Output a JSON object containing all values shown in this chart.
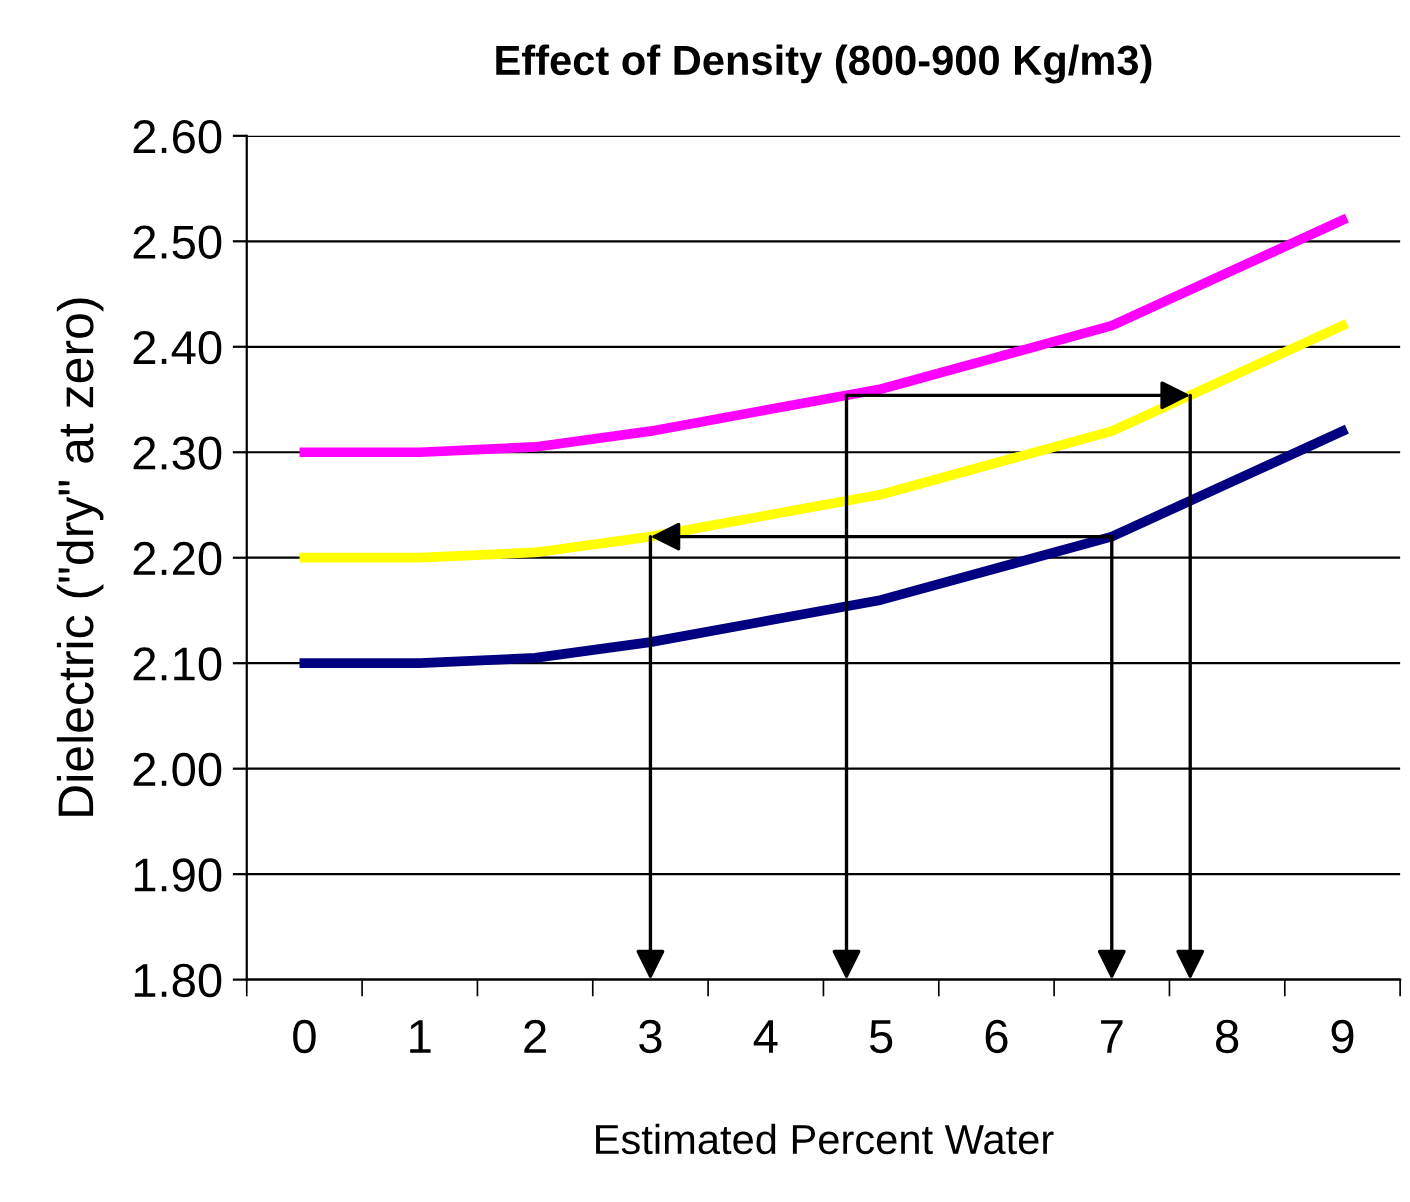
{
  "chart_data": {
    "type": "line",
    "title": "Effect of Density (800-900 Kg/m3)",
    "xlabel": "Estimated Percent Water",
    "ylabel": "Dielectric (\"dry\" at zero)",
    "categories": [
      "0",
      "1",
      "2",
      "3",
      "4",
      "5",
      "6",
      "7",
      "8",
      "9"
    ],
    "series": [
      {
        "color": "#ff00ff",
        "values": [
          2.3,
          2.3,
          2.305,
          2.32,
          2.34,
          2.36,
          2.39,
          2.42,
          2.47,
          2.52
        ]
      },
      {
        "color": "#ffff00",
        "values": [
          2.2,
          2.2,
          2.205,
          2.22,
          2.24,
          2.26,
          2.29,
          2.32,
          2.37,
          2.42
        ]
      },
      {
        "color": "#000080",
        "values": [
          2.1,
          2.1,
          2.105,
          2.12,
          2.14,
          2.16,
          2.19,
          2.22,
          2.27,
          2.32
        ]
      }
    ],
    "ylim": [
      1.8,
      2.6
    ],
    "yticks": [
      {
        "value": 1.8,
        "label": "1.80"
      },
      {
        "value": 1.9,
        "label": "1.90"
      },
      {
        "value": 2.0,
        "label": "2.00"
      },
      {
        "value": 2.1,
        "label": "2.10"
      },
      {
        "value": 2.2,
        "label": "2.20"
      },
      {
        "value": 2.3,
        "label": "2.30"
      },
      {
        "value": 2.4,
        "label": "2.40"
      },
      {
        "value": 2.5,
        "label": "2.50"
      },
      {
        "value": 2.6,
        "label": "2.60"
      }
    ],
    "grid": "y",
    "marker": "none",
    "line_style": "solid"
  }
}
